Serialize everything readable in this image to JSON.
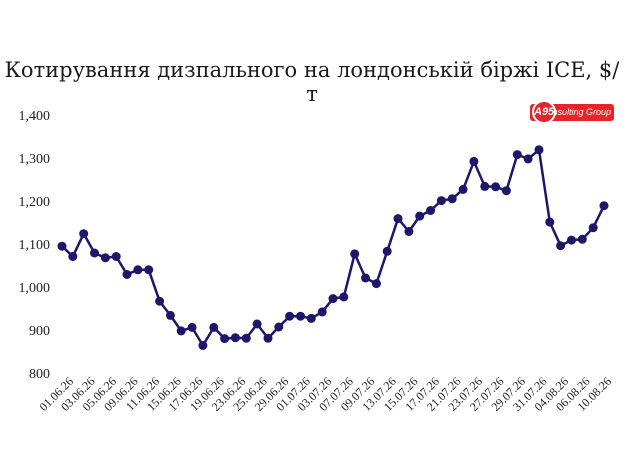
{
  "title": "Котирування дизпального на лондонській біржі ICE, $/т",
  "logo": {
    "mark": "A95",
    "text": "Consulting Group"
  },
  "colors": {
    "line": "#1c1769",
    "marker": "#1c1769",
    "logo": "#e8242b"
  },
  "chart_data": {
    "type": "line",
    "title": "Котирування дизпального на лондонській біржі ICE, $/т",
    "xlabel": "",
    "ylabel": "",
    "ylim": [
      800,
      1400
    ],
    "yticks": [
      800,
      900,
      1000,
      1100,
      1200,
      1300,
      1400
    ],
    "ytick_labels": [
      "800",
      "900",
      "1,000",
      "1,100",
      "1,200",
      "1,300",
      "1,400"
    ],
    "grid": false,
    "x_tick_labels": [
      "01.06.26",
      "03.06.26",
      "05.06.26",
      "09.06.26",
      "11.06.26",
      "15.06.26",
      "17.06.26",
      "19.06.26",
      "23.06.26",
      "25.06.26",
      "29.06.26",
      "01.07.26",
      "03.07.26",
      "07.07.26",
      "09.07.26",
      "13.07.26",
      "15.07.26",
      "17.07.26",
      "21.07.26",
      "23.07.26",
      "27.07.26",
      "29.07.26",
      "31.07.26",
      "04.08.26",
      "06.08.26",
      "10.08.26"
    ],
    "series": [
      {
        "values": [
          1095,
          1071,
          1124,
          1079,
          1068,
          1071,
          1029,
          1040,
          1040,
          967,
          934,
          898,
          906,
          864,
          906,
          880,
          882,
          881,
          914,
          881,
          907,
          932,
          932,
          927,
          942,
          973,
          977,
          1077,
          1021,
          1008,
          1083,
          1159,
          1129,
          1165,
          1178,
          1201,
          1205,
          1227,
          1292,
          1234,
          1233,
          1224,
          1308,
          1298,
          1319,
          1151,
          1096,
          1109,
          1111,
          1138,
          1189
        ]
      }
    ]
  }
}
